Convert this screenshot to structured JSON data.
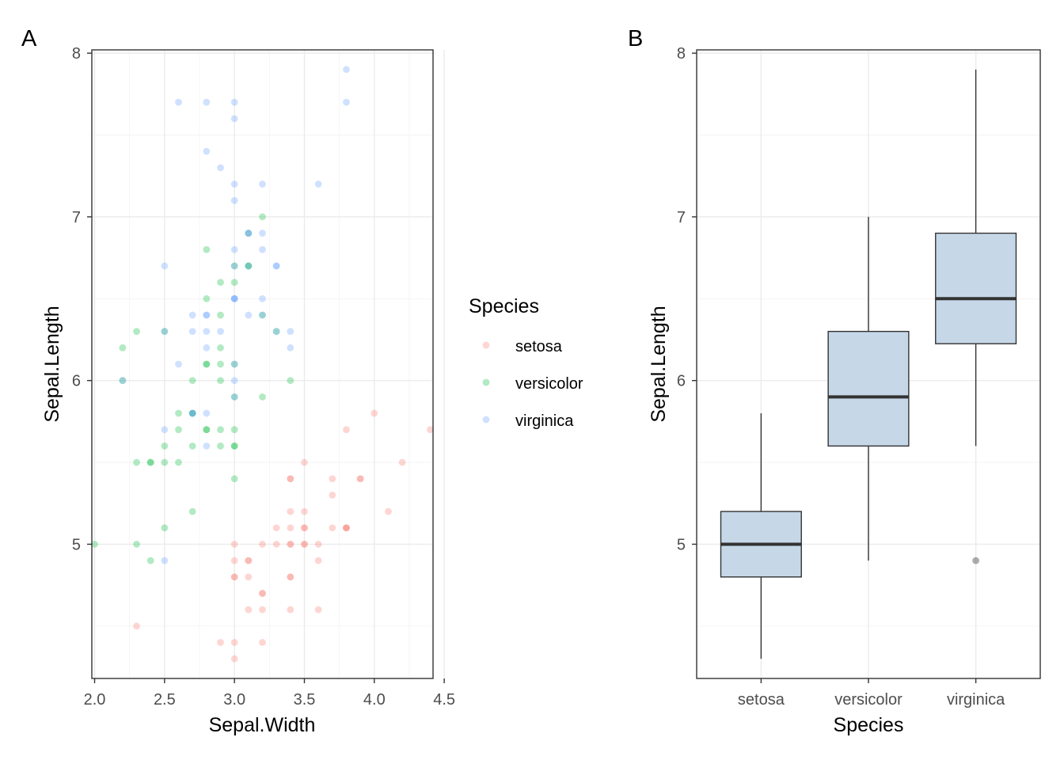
{
  "panel_tags": [
    "A",
    "B"
  ],
  "legend": {
    "title": "Species",
    "items": [
      {
        "label": "setosa",
        "color": "#F8766D"
      },
      {
        "label": "versicolor",
        "color": "#00BA38"
      },
      {
        "label": "virginica",
        "color": "#619CFF"
      }
    ]
  },
  "chart_data": [
    {
      "type": "scatter",
      "xlabel": "Sepal.Width",
      "ylabel": "Sepal.Length",
      "xlim": [
        1.98,
        4.42
      ],
      "ylim": [
        4.18,
        8.02
      ],
      "xticks": [
        2.0,
        2.5,
        3.0,
        3.5,
        4.0,
        4.5
      ],
      "xtick_labels": [
        "2.0",
        "2.5",
        "3.0",
        "3.5",
        "4.0",
        "4.5"
      ],
      "yticks": [
        5,
        6,
        7,
        8
      ],
      "ytick_labels": [
        "5",
        "6",
        "7",
        "8"
      ],
      "grid": true,
      "legend_position": "right",
      "point_alpha": 0.3,
      "series": [
        {
          "name": "setosa",
          "color": "#F8766D",
          "points": [
            [
              3.5,
              5.1
            ],
            [
              3.0,
              4.9
            ],
            [
              3.2,
              4.7
            ],
            [
              3.1,
              4.6
            ],
            [
              3.6,
              5.0
            ],
            [
              3.9,
              5.4
            ],
            [
              3.4,
              4.6
            ],
            [
              3.4,
              5.0
            ],
            [
              2.9,
              4.4
            ],
            [
              3.1,
              4.9
            ],
            [
              3.7,
              5.4
            ],
            [
              3.4,
              4.8
            ],
            [
              3.0,
              4.8
            ],
            [
              3.0,
              4.3
            ],
            [
              4.0,
              5.8
            ],
            [
              4.4,
              5.7
            ],
            [
              3.9,
              5.4
            ],
            [
              3.5,
              5.1
            ],
            [
              3.8,
              5.7
            ],
            [
              3.8,
              5.1
            ],
            [
              3.4,
              5.4
            ],
            [
              3.7,
              5.1
            ],
            [
              3.6,
              4.6
            ],
            [
              3.3,
              5.1
            ],
            [
              3.4,
              4.8
            ],
            [
              3.0,
              5.0
            ],
            [
              3.4,
              5.0
            ],
            [
              3.5,
              5.2
            ],
            [
              3.4,
              5.2
            ],
            [
              3.2,
              4.7
            ],
            [
              3.1,
              4.8
            ],
            [
              3.4,
              5.4
            ],
            [
              4.1,
              5.2
            ],
            [
              4.2,
              5.5
            ],
            [
              3.1,
              4.9
            ],
            [
              3.2,
              5.0
            ],
            [
              3.5,
              5.5
            ],
            [
              3.6,
              4.9
            ],
            [
              3.0,
              4.4
            ],
            [
              3.4,
              5.1
            ],
            [
              3.5,
              5.0
            ],
            [
              2.3,
              4.5
            ],
            [
              3.2,
              4.4
            ],
            [
              3.5,
              5.0
            ],
            [
              3.8,
              5.1
            ],
            [
              3.0,
              4.8
            ],
            [
              3.8,
              5.1
            ],
            [
              3.2,
              4.6
            ],
            [
              3.7,
              5.3
            ],
            [
              3.3,
              5.0
            ]
          ]
        },
        {
          "name": "versicolor",
          "color": "#00BA38",
          "points": [
            [
              3.2,
              7.0
            ],
            [
              3.2,
              6.4
            ],
            [
              3.1,
              6.9
            ],
            [
              2.3,
              5.5
            ],
            [
              2.8,
              6.5
            ],
            [
              2.8,
              5.7
            ],
            [
              3.3,
              6.3
            ],
            [
              2.4,
              4.9
            ],
            [
              2.9,
              6.6
            ],
            [
              2.7,
              5.2
            ],
            [
              2.0,
              5.0
            ],
            [
              3.0,
              5.9
            ],
            [
              2.2,
              6.0
            ],
            [
              2.9,
              6.1
            ],
            [
              2.9,
              5.6
            ],
            [
              3.1,
              6.7
            ],
            [
              3.0,
              5.6
            ],
            [
              2.7,
              5.8
            ],
            [
              2.2,
              6.2
            ],
            [
              2.5,
              5.6
            ],
            [
              3.2,
              5.9
            ],
            [
              2.8,
              6.1
            ],
            [
              2.5,
              6.3
            ],
            [
              2.8,
              6.1
            ],
            [
              2.9,
              6.4
            ],
            [
              3.0,
              6.6
            ],
            [
              2.8,
              6.8
            ],
            [
              3.0,
              6.7
            ],
            [
              2.9,
              6.0
            ],
            [
              2.6,
              5.7
            ],
            [
              2.4,
              5.5
            ],
            [
              2.4,
              5.5
            ],
            [
              2.7,
              5.8
            ],
            [
              2.7,
              6.0
            ],
            [
              3.0,
              5.4
            ],
            [
              3.4,
              6.0
            ],
            [
              3.1,
              6.7
            ],
            [
              2.3,
              6.3
            ],
            [
              3.0,
              5.6
            ],
            [
              2.5,
              5.5
            ],
            [
              2.6,
              5.5
            ],
            [
              3.0,
              6.1
            ],
            [
              2.6,
              5.8
            ],
            [
              2.3,
              5.0
            ],
            [
              2.7,
              5.6
            ],
            [
              3.0,
              5.7
            ],
            [
              2.9,
              5.7
            ],
            [
              2.9,
              6.2
            ],
            [
              2.5,
              5.1
            ],
            [
              2.8,
              5.7
            ]
          ]
        },
        {
          "name": "virginica",
          "color": "#619CFF",
          "points": [
            [
              3.3,
              6.3
            ],
            [
              2.7,
              5.8
            ],
            [
              3.0,
              7.1
            ],
            [
              2.9,
              6.3
            ],
            [
              3.0,
              6.5
            ],
            [
              3.0,
              7.6
            ],
            [
              2.5,
              4.9
            ],
            [
              2.9,
              7.3
            ],
            [
              2.5,
              6.7
            ],
            [
              3.6,
              7.2
            ],
            [
              3.2,
              6.5
            ],
            [
              2.7,
              6.4
            ],
            [
              3.0,
              6.8
            ],
            [
              2.5,
              5.7
            ],
            [
              2.8,
              5.8
            ],
            [
              3.2,
              6.4
            ],
            [
              3.0,
              6.5
            ],
            [
              3.8,
              7.7
            ],
            [
              2.6,
              7.7
            ],
            [
              2.2,
              6.0
            ],
            [
              3.2,
              6.9
            ],
            [
              2.8,
              5.6
            ],
            [
              2.8,
              7.7
            ],
            [
              2.7,
              6.3
            ],
            [
              3.3,
              6.7
            ],
            [
              3.2,
              7.2
            ],
            [
              2.8,
              6.2
            ],
            [
              3.0,
              6.1
            ],
            [
              2.8,
              6.4
            ],
            [
              3.0,
              7.2
            ],
            [
              2.8,
              7.4
            ],
            [
              3.8,
              7.9
            ],
            [
              2.8,
              6.4
            ],
            [
              2.8,
              6.3
            ],
            [
              2.6,
              6.1
            ],
            [
              3.0,
              7.7
            ],
            [
              3.4,
              6.3
            ],
            [
              3.1,
              6.4
            ],
            [
              3.0,
              6.0
            ],
            [
              3.1,
              6.9
            ],
            [
              3.1,
              6.7
            ],
            [
              3.1,
              6.9
            ],
            [
              2.7,
              5.8
            ],
            [
              3.2,
              6.8
            ],
            [
              3.3,
              6.7
            ],
            [
              3.0,
              6.7
            ],
            [
              2.5,
              6.3
            ],
            [
              3.0,
              6.5
            ],
            [
              3.4,
              6.2
            ],
            [
              3.0,
              5.9
            ]
          ]
        }
      ]
    },
    {
      "type": "box",
      "xlabel": "Species",
      "ylabel": "Sepal.Length",
      "categories": [
        "setosa",
        "versicolor",
        "virginica"
      ],
      "ylim": [
        4.18,
        8.02
      ],
      "yticks": [
        5,
        6,
        7,
        8
      ],
      "ytick_labels": [
        "5",
        "6",
        "7",
        "8"
      ],
      "grid": true,
      "fill_color": "#C6D8E8",
      "boxes": [
        {
          "category": "setosa",
          "whisker_low": 4.3,
          "q1": 4.8,
          "median": 5.0,
          "q3": 5.2,
          "whisker_high": 5.8,
          "outliers": []
        },
        {
          "category": "versicolor",
          "whisker_low": 4.9,
          "q1": 5.6,
          "median": 5.9,
          "q3": 6.3,
          "whisker_high": 7.0,
          "outliers": []
        },
        {
          "category": "virginica",
          "whisker_low": 5.6,
          "q1": 6.225,
          "median": 6.5,
          "q3": 6.9,
          "whisker_high": 7.9,
          "outliers": [
            4.9
          ]
        }
      ]
    }
  ]
}
